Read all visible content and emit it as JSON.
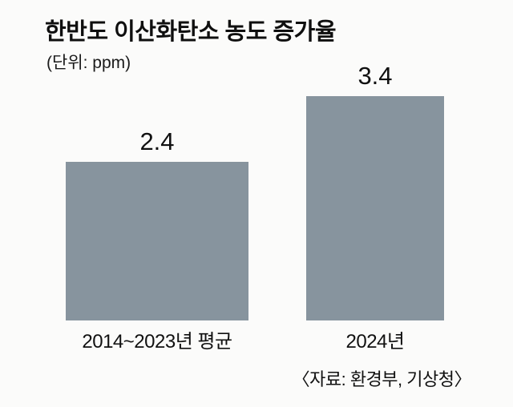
{
  "title": "한반도 이산화탄소 농도 증가율",
  "unit_label": "(단위: ppm)",
  "source": "〈자료: 환경부, 기상청〉",
  "colors": {
    "bar": "#87949e",
    "background": "#fbfbfa",
    "text": "#111111"
  },
  "chart_data": {
    "type": "bar",
    "title": "한반도 이산화탄소 농도 증가율",
    "categories": [
      "2014~2023년 평균",
      "2024년"
    ],
    "values": [
      2.4,
      3.4
    ],
    "xlabel": "",
    "ylabel": "ppm",
    "ylim": [
      0,
      3.4
    ],
    "grid": false,
    "legend": false,
    "data_labels": [
      "2.4",
      "3.4"
    ]
  }
}
